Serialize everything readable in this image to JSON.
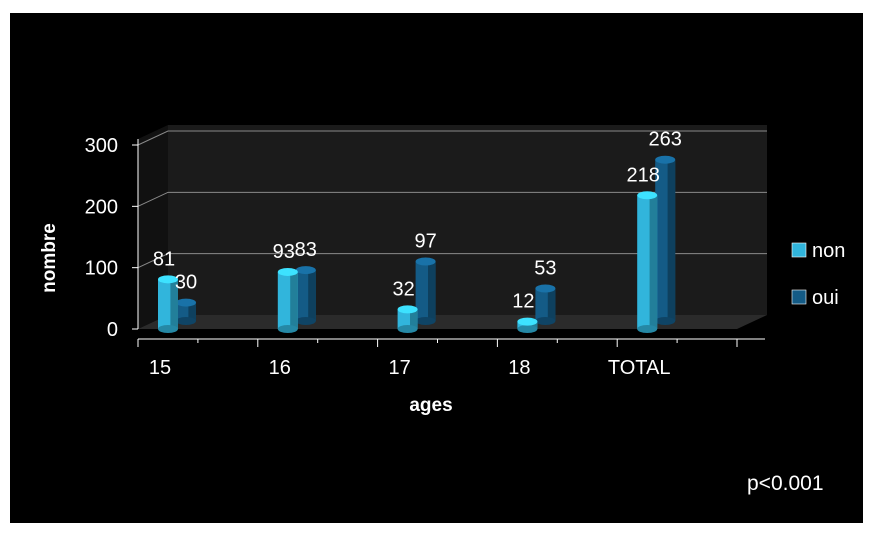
{
  "colors": {
    "background": "#000000",
    "non": "#31b5dc",
    "oui": "#145b86",
    "text": "#ffffff",
    "grid": "#8a8a8a"
  },
  "footer": {
    "pvalue": "p<0.001"
  },
  "chart_data": {
    "type": "bar",
    "style": "3d-cylinder",
    "categories": [
      "15",
      "16",
      "17",
      "18",
      "TOTAL"
    ],
    "series": [
      {
        "name": "non",
        "values": [
          81,
          93,
          32,
          12,
          218
        ]
      },
      {
        "name": "oui",
        "values": [
          30,
          83,
          97,
          53,
          263
        ]
      }
    ],
    "data_labels": {
      "non": [
        "81",
        "93",
        "32",
        "12",
        "218"
      ],
      "oui": [
        "30",
        "83",
        "97",
        "53",
        "263"
      ]
    },
    "xlabel": "ages",
    "ylabel": "nombre",
    "ylim": [
      0,
      300
    ],
    "yticks": [
      "0",
      "100",
      "200",
      "300"
    ],
    "grid": true,
    "legend": "right",
    "legend_entries": [
      "non",
      "oui"
    ]
  }
}
